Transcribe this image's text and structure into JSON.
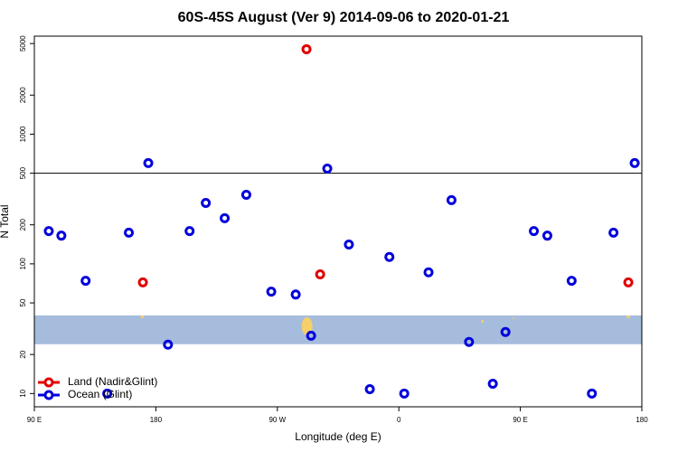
{
  "chart_data": {
    "type": "scatter",
    "title": "60S-45S August (Ver 9)   2014-09-06 to 2020-01-21",
    "x_label": "Longitude (deg E)",
    "y_label": "N Total",
    "log_y": true,
    "xlim": [
      90,
      540
    ],
    "ylim": [
      7.9,
      5700
    ],
    "xticks": [
      {
        "value": 90,
        "label": "90 E"
      },
      180,
      {
        "value": 270,
        "label": "90 W"
      },
      {
        "value": 360,
        "label": "0"
      },
      {
        "value": 450,
        "label": "90 E"
      },
      {
        "value": 540,
        "label": "180"
      }
    ],
    "yticks": [
      10,
      20,
      50,
      100,
      200,
      500,
      1000,
      2000,
      5000
    ],
    "ref_line": 500,
    "band": [
      24,
      40
    ],
    "band_color": "#a5bcdc",
    "legend_position": "bottom-left",
    "series": [
      {
        "name": "Land (Nadir&Glint)",
        "color": "#e00000",
        "x": [
          291.6,
          170.4,
          301.7,
          530
        ],
        "values": [
          4520,
          72,
          83,
          72
        ]
      },
      {
        "name": "Ocean (Glint)",
        "color": "#0000dd",
        "x": [
          100.7,
          110,
          128,
          144,
          160,
          174.4,
          189,
          205,
          217,
          231,
          247,
          265.5,
          283.6,
          295,
          307,
          323,
          338.5,
          353,
          364,
          382,
          399,
          412,
          429.6,
          439,
          460,
          470,
          488,
          503,
          519,
          534.7
        ],
        "values": [
          179,
          165,
          74,
          10,
          174,
          599,
          23.8,
          179,
          295,
          225,
          341,
          61,
          58,
          27.9,
          543,
          141,
          10.8,
          113,
          10,
          86,
          310,
          25,
          11.9,
          29.8,
          179,
          165,
          74,
          10,
          174,
          599
        ]
      }
    ]
  }
}
